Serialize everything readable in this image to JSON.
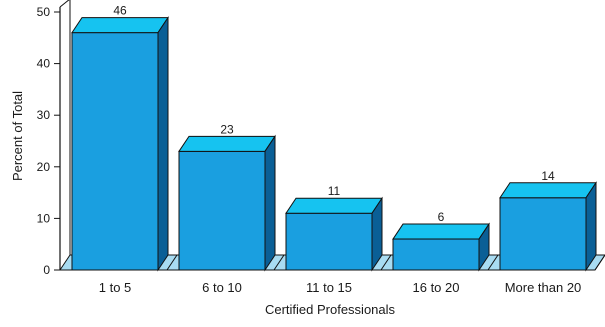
{
  "chart_data": {
    "type": "bar",
    "categories": [
      "1 to 5",
      "6 to 10",
      "11 to 15",
      "16 to 20",
      "More than 20"
    ],
    "values": [
      46,
      23,
      11,
      6,
      14
    ],
    "data_labels": [
      "46",
      "23",
      "11",
      "6",
      "14"
    ],
    "xlabel": "Certified Professionals",
    "ylabel": "Percent of Total",
    "ylim": [
      0,
      50
    ],
    "yticks": [
      0,
      10,
      20,
      30,
      40,
      50
    ],
    "grid": false,
    "style": "3d",
    "colors": {
      "bar_front": "#1a9fe0",
      "bar_top": "#16c3f0",
      "bar_side": "#0a5f96",
      "floor": "#a8dcf2",
      "outline": "#111111"
    }
  }
}
